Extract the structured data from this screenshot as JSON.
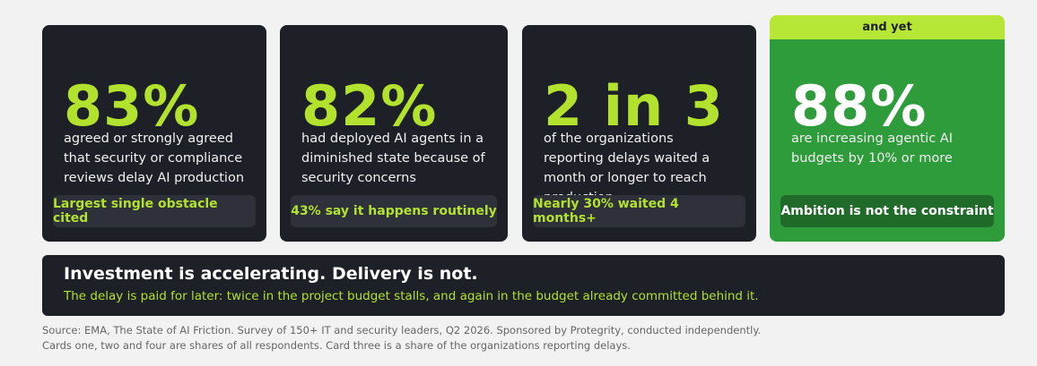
{
  "cards": [
    {
      "stat": "83%",
      "text": "agreed or strongly agreed that security or compliance reviews delay AI production",
      "note": "Largest single obstacle cited"
    },
    {
      "stat": "82%",
      "text": "had deployed AI agents in a diminished state because of security concerns",
      "note": "43% say it happens routinely"
    },
    {
      "stat": "2 in 3",
      "text": "of the organizations reporting delays waited a month or longer to reach production",
      "note": "Nearly 30% waited 4 months+"
    },
    {
      "tag": "and yet",
      "stat": "88%",
      "text": "are increasing agentic AI budgets by 10% or more",
      "note": "Ambition is not the constraint"
    }
  ],
  "banner": {
    "title": "Investment is accelerating. Delivery is not.",
    "subtitle": "The delay is paid for later: twice in the project budget stalls, and again in the budget already committed behind it."
  },
  "footnotes": [
    "Source: EMA, The State of AI Friction. Survey of 150+ IT and security leaders, Q2 2026. Sponsored by Protegrity, conducted independently.",
    "Cards one, two and four are shares of all respondents. Card three is a share of the organizations reporting delays."
  ]
}
